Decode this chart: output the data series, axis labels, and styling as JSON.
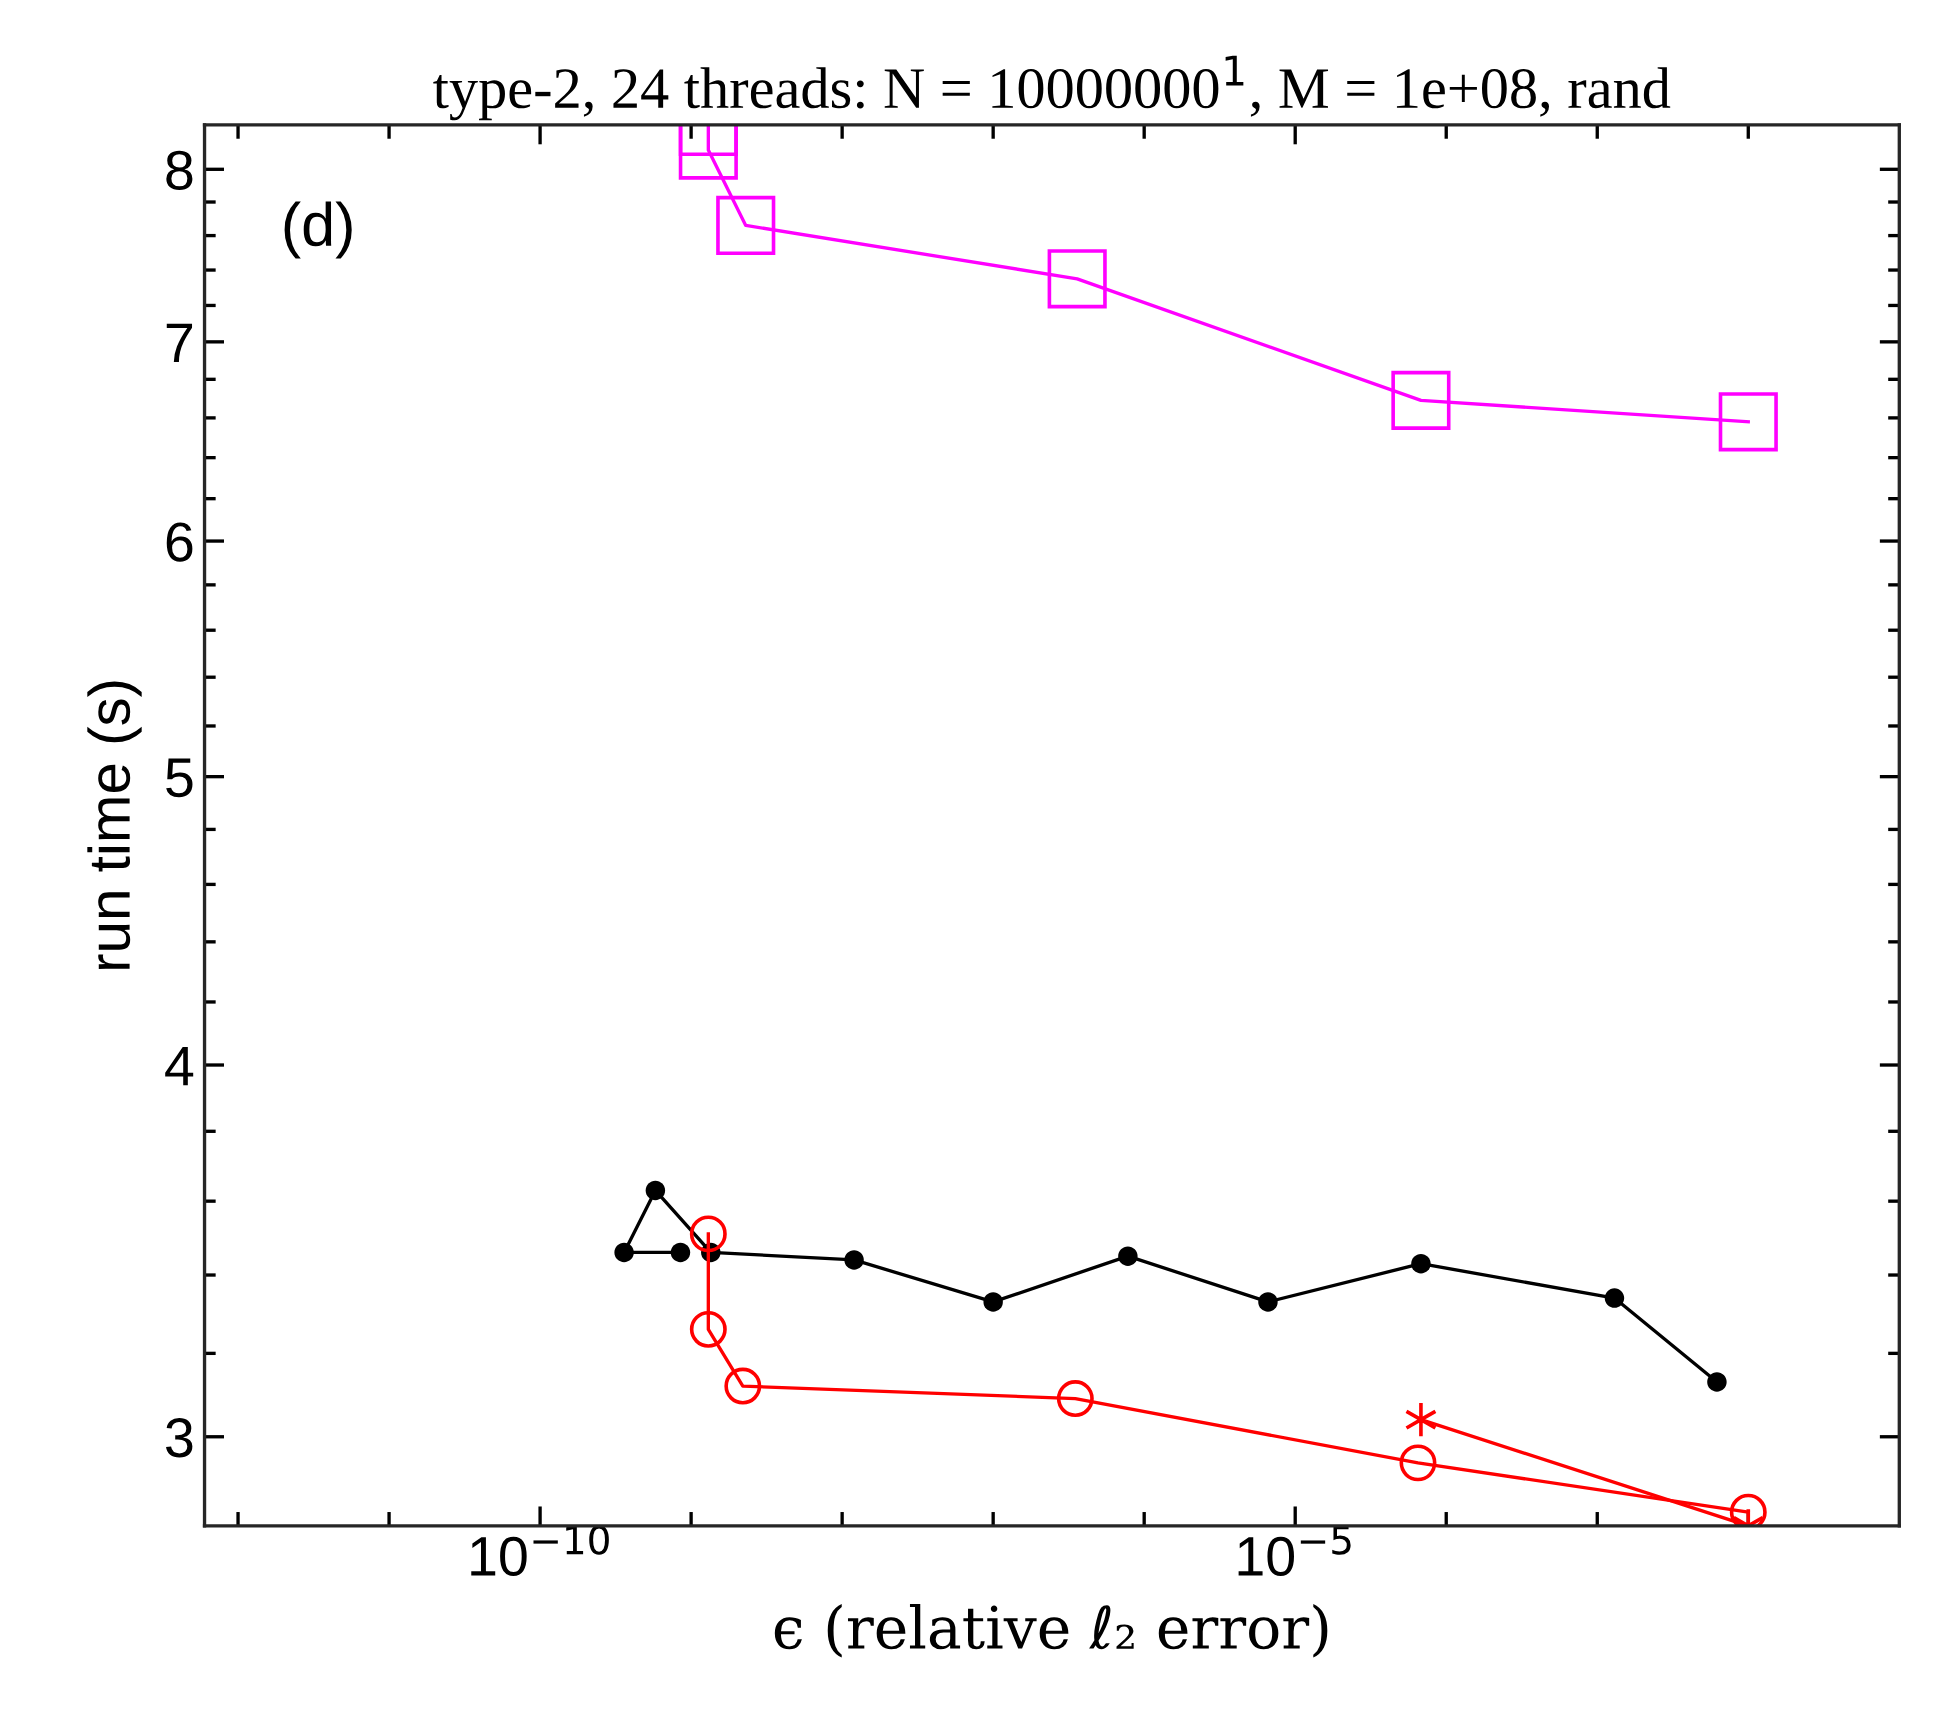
{
  "chart_data": {
    "type": "line",
    "title": "type-2, 24 threads: N = 10000000$^{1}$, M = 1e+08, rand",
    "xlabel": "ϵ (relative ℓ₂ error)",
    "ylabel": "run time (s)",
    "annotations": [
      "(d)"
    ],
    "log": "xy",
    "grid": false,
    "legend": false,
    "line_style": "solid",
    "xlim": [
      6e-13,
      0.1
    ],
    "ylim": [
      2.8,
      8.28
    ],
    "xticks": [
      {
        "value": 1e-12,
        "label": null
      },
      {
        "value": 1e-11,
        "label": null
      },
      {
        "value": 1e-10,
        "label": "10$^{−10}$"
      },
      {
        "value": 1e-09,
        "label": null
      },
      {
        "value": 1e-08,
        "label": null
      },
      {
        "value": 1e-07,
        "label": null
      },
      {
        "value": 1e-06,
        "label": null
      },
      {
        "value": 1e-05,
        "label": "10$^{−5}$"
      },
      {
        "value": 0.0001,
        "label": null
      },
      {
        "value": 0.001,
        "label": null
      },
      {
        "value": 0.01,
        "label": null
      }
    ],
    "yticks": [
      3,
      {
        "value": 3.2,
        "label": null
      },
      {
        "value": 3.4,
        "label": null
      },
      {
        "value": 3.6,
        "label": null
      },
      {
        "value": 3.8,
        "label": null
      },
      4,
      {
        "value": 4.2,
        "label": null
      },
      {
        "value": 4.4,
        "label": null
      },
      {
        "value": 4.6,
        "label": null
      },
      {
        "value": 4.8,
        "label": null
      },
      5,
      {
        "value": 5.2,
        "label": null
      },
      {
        "value": 5.4,
        "label": null
      },
      {
        "value": 5.6,
        "label": null
      },
      {
        "value": 5.8,
        "label": null
      },
      6,
      {
        "value": 6.2,
        "label": null
      },
      {
        "value": 6.4,
        "label": null
      },
      {
        "value": 6.6,
        "label": null
      },
      {
        "value": 6.8,
        "label": null
      },
      7,
      {
        "value": 7.2,
        "label": null
      },
      {
        "value": 7.4,
        "label": null
      },
      {
        "value": 7.6,
        "label": null
      },
      {
        "value": 7.8,
        "label": null
      },
      8
    ],
    "series": [
      {
        "color": "#ff00ff",
        "marker": "square",
        "x": [
          1.3e-09,
          1.3e-09,
          2.3e-09,
          3.6e-07,
          6.8e-05,
          0.01
        ],
        "values": [
          8.27,
          8.12,
          7.66,
          7.35,
          6.69,
          6.58
        ]
      },
      {
        "color": "#000000",
        "marker": "point",
        "x": [
          8.5e-10,
          3.6e-10,
          5.8e-10,
          1.35e-09,
          1.2e-08,
          1e-07,
          7.8e-07,
          6.6e-06,
          6.8e-05,
          0.0013,
          0.0062
        ],
        "values": [
          3.46,
          3.46,
          3.63,
          3.46,
          3.44,
          3.33,
          3.45,
          3.33,
          3.43,
          3.34,
          3.13
        ]
      },
      {
        "color": "#ff0000",
        "marker": "circle",
        "x": [
          1.3e-09,
          1.3e-09,
          2.2e-09,
          3.5e-07,
          6.5e-05,
          0.01
        ],
        "values": [
          3.51,
          3.26,
          3.12,
          3.09,
          2.94,
          2.83
        ]
      },
      {
        "color": "#ff0000",
        "marker": "cross",
        "x": [
          6.8e-05,
          0.01
        ],
        "values": [
          3.04,
          2.8
        ]
      }
    ]
  }
}
